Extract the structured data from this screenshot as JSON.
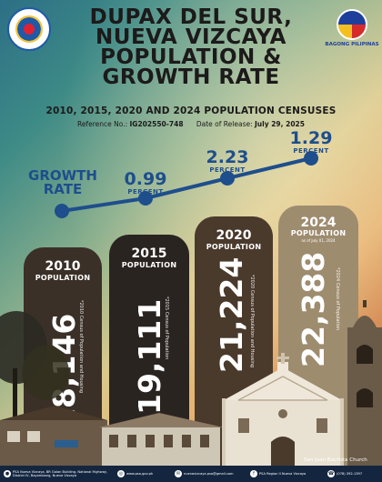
{
  "header": {
    "title_lines": [
      "DUPAX DEL SUR,",
      "NUEVA VIZCAYA",
      "POPULATION &",
      "GROWTH RATE"
    ],
    "subtitle": "2010, 2015, 2020 AND 2024 POPULATION CENSUSES",
    "reference_label": "Reference No.:",
    "reference_no": "IG202550-748",
    "release_label": "Date of Release:",
    "release_date": "July 29, 2025",
    "logo_right_caption": "BAGONG PILIPINAS"
  },
  "growth": {
    "label": "GROWTH RATE",
    "unit": "PERCENT",
    "points": [
      {
        "period": "2010-2015",
        "value": null,
        "display": ""
      },
      {
        "period": "2015-2020",
        "value": 0.99,
        "display": "0.99"
      },
      {
        "period": "2020-2024",
        "value": 2.23,
        "display": "2.23"
      },
      {
        "period": "2024",
        "value": 1.29,
        "display": "1.29"
      }
    ]
  },
  "chart_data": {
    "type": "bar",
    "title": "",
    "categories": [
      "2010",
      "2015",
      "2020",
      "2024"
    ],
    "values": [
      18146,
      19111,
      21224,
      22388
    ],
    "value_labels": [
      "18,146",
      "19,111",
      "21,224",
      "22,388"
    ],
    "category_label": "POPULATION",
    "as_of_note": "as of July 01, 2024",
    "sources": [
      "*2010 Census of Population and Housing",
      "*2015 Census of Population",
      "*2020 Census of Population and Housing",
      "*2024 Census of Population"
    ],
    "growth_rate_percent": [
      0.99,
      2.23,
      1.29
    ],
    "bar_colors": [
      "#3a3027",
      "#2a2421",
      "#4a3a2c",
      "#9e8c6f"
    ]
  },
  "photo_credit": "San Juan Bautista Church",
  "footer": [
    {
      "icon": "location-icon",
      "text": "PSA Nueva Vizcaya, BR Galan Building, National Highway, District IV, Bayombong, Nueva Vizcaya"
    },
    {
      "icon": "globe-icon",
      "text": "www.psa.gov.ph"
    },
    {
      "icon": "email-icon",
      "text": "nuevavizcaya.psa@gmail.com"
    },
    {
      "icon": "facebook-icon",
      "text": "PSA Region II Nueva Vizcaya"
    },
    {
      "icon": "phone-icon",
      "text": "(078) 392-1397"
    }
  ]
}
